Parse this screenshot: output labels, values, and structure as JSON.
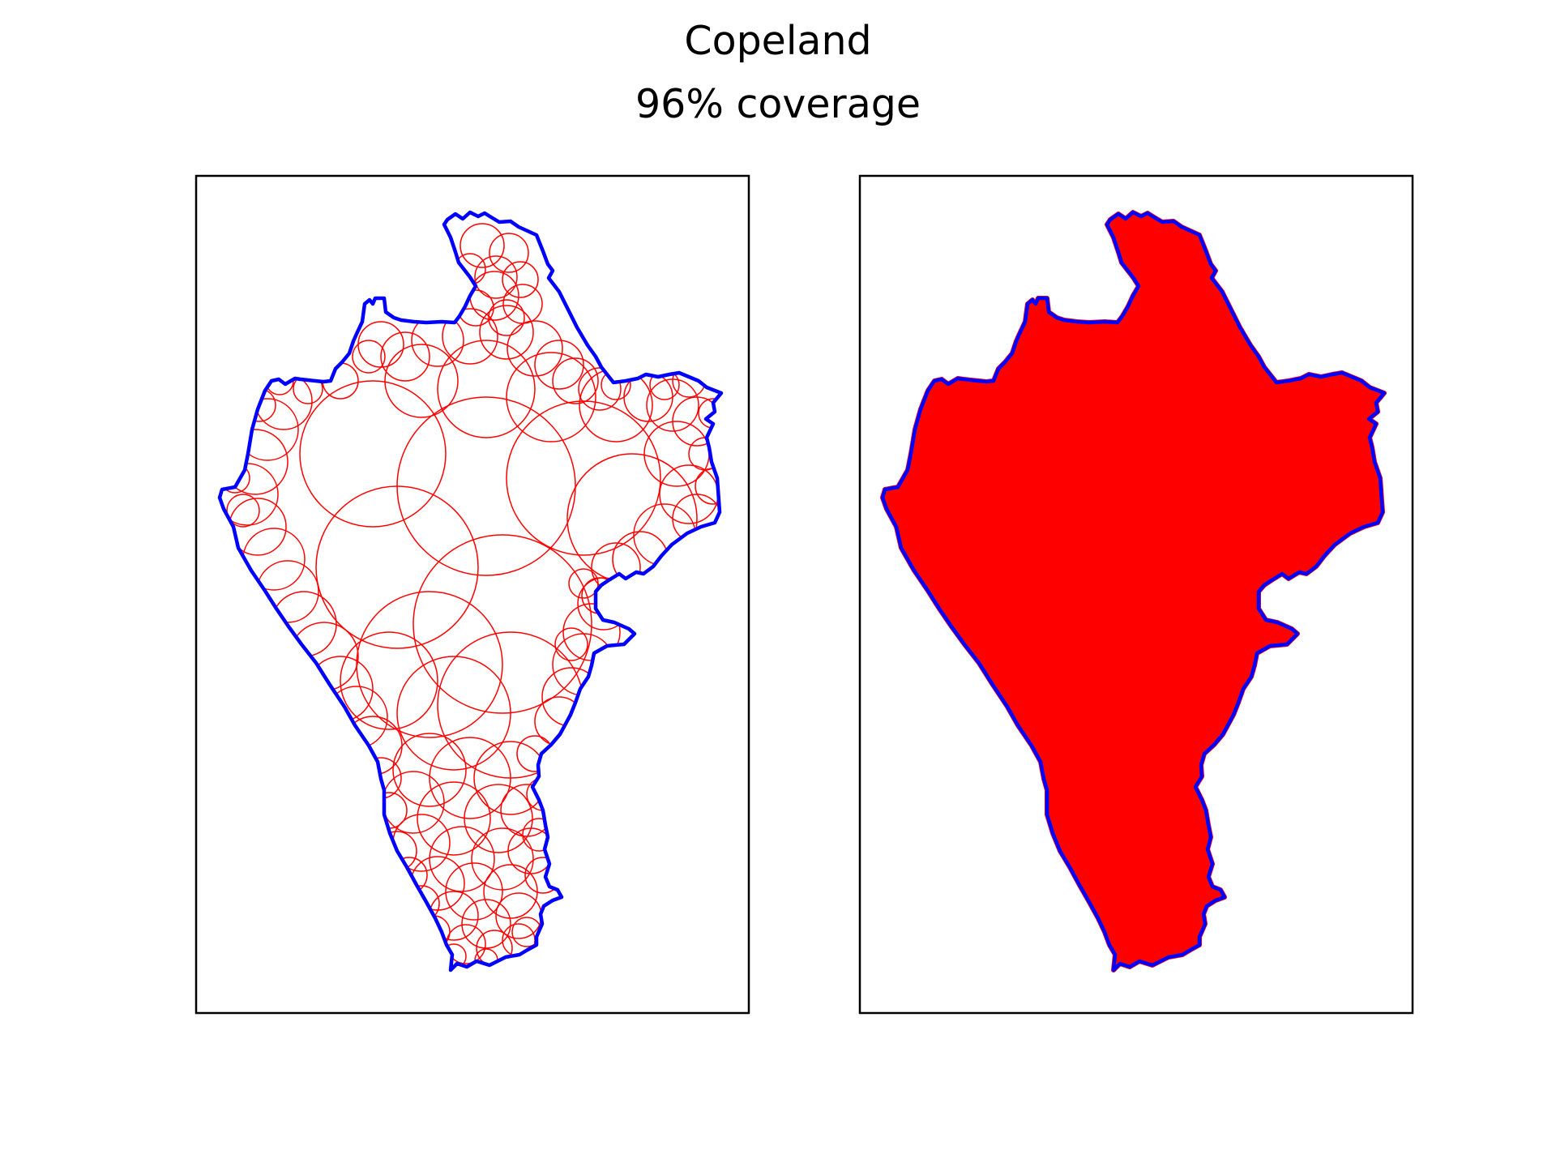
{
  "figure": {
    "title": "Copeland",
    "subtitle": "96% coverage"
  },
  "colors": {
    "boundary": "#0000ff",
    "circles": "#ff0000",
    "fill": "#ff0000",
    "frame": "#000000",
    "background": "#ffffff"
  },
  "panels": [
    {
      "name": "circle-outlines",
      "mode": "outline"
    },
    {
      "name": "filled-coverage",
      "mode": "filled"
    }
  ]
}
